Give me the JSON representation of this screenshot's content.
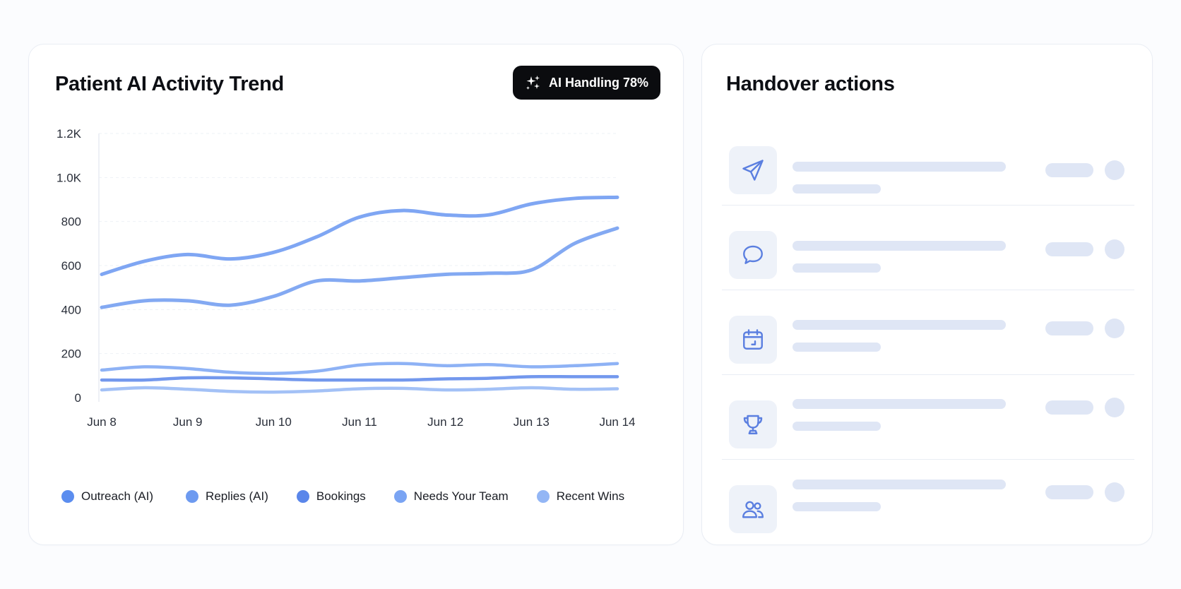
{
  "chart_card": {
    "title": "Patient AI Activity Trend",
    "badge": {
      "label": "AI Handling 78%",
      "icon": "sparkles-icon"
    }
  },
  "chart_data": {
    "type": "line",
    "title": "Patient AI Activity Trend",
    "x": [
      "Jun 8",
      "Jun 8.5",
      "Jun 9",
      "Jun 9.5",
      "Jun 10",
      "Jun 10.5",
      "Jun 11",
      "Jun 11.5",
      "Jun 12",
      "Jun 12.5",
      "Jun 13",
      "Jun 13.5",
      "Jun 14"
    ],
    "x_ticks": [
      "Jun 8",
      "Jun 9",
      "Jun 10",
      "Jun 11",
      "Jun 12",
      "Jun 13",
      "Jun 14"
    ],
    "y_ticks": [
      "0",
      "200",
      "400",
      "600",
      "800",
      "1.0K",
      "1.2K"
    ],
    "ylim": [
      0,
      1200
    ],
    "grid": true,
    "legend_position": "bottom",
    "series": [
      {
        "name": "Outreach (AI)",
        "color": "#5b8def",
        "values": [
          560,
          620,
          650,
          630,
          660,
          730,
          820,
          850,
          830,
          830,
          880,
          905,
          910
        ]
      },
      {
        "name": "Replies (AI)",
        "color": "#6d9af0",
        "values": [
          410,
          440,
          440,
          420,
          460,
          530,
          530,
          545,
          560,
          565,
          580,
          700,
          770
        ]
      },
      {
        "name": "Bookings",
        "color": "#5a86ea",
        "values": [
          80,
          80,
          90,
          90,
          85,
          80,
          80,
          80,
          85,
          88,
          95,
          95,
          95
        ]
      },
      {
        "name": "Needs Your Team",
        "color": "#7aa4f3",
        "values": [
          125,
          140,
          132,
          115,
          110,
          120,
          148,
          155,
          145,
          150,
          140,
          145,
          155
        ]
      },
      {
        "name": "Recent Wins",
        "color": "#93b6f5",
        "values": [
          35,
          45,
          38,
          28,
          25,
          30,
          40,
          42,
          35,
          38,
          45,
          38,
          40
        ]
      }
    ]
  },
  "handover_card": {
    "title": "Handover actions",
    "items": [
      {
        "icon": "send-icon"
      },
      {
        "icon": "chat-bubble-icon"
      },
      {
        "icon": "calendar-icon"
      },
      {
        "icon": "trophy-icon"
      },
      {
        "icon": "users-icon"
      }
    ]
  }
}
